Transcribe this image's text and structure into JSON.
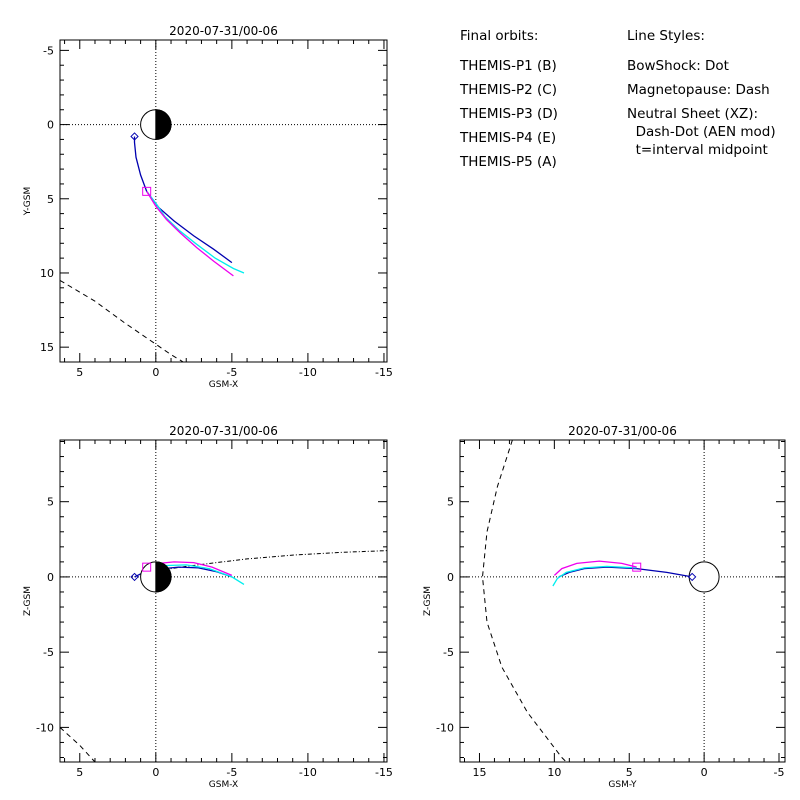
{
  "legend": {
    "orbits_heading": "Final orbits:",
    "probes": [
      {
        "label": "THEMIS-P1 (B)",
        "color": "#ff0000"
      },
      {
        "label": "THEMIS-P2 (C)",
        "color": "#00dd00"
      },
      {
        "label": "THEMIS-P3 (D)",
        "color": "#00eeee"
      },
      {
        "label": "THEMIS-P4 (E)",
        "color": "#0000b0"
      },
      {
        "label": "THEMIS-P5 (A)",
        "color": "#ee00ee"
      }
    ],
    "styles_heading": "Line Styles:",
    "styles": [
      "BowShock: Dot",
      "Magnetopause: Dash",
      "Neutral Sheet (XZ):",
      "  Dash-Dot (AEN mod)",
      "  t=interval midpoint"
    ]
  },
  "chart_data": [
    {
      "id": "xy",
      "type": "line",
      "title": "2020-07-31/00-06",
      "xlabel": "GSM-X",
      "ylabel": "Y-GSM",
      "xlim": [
        6.3,
        -15.2
      ],
      "ylim": [
        16.0,
        -5.7
      ],
      "xticks": [
        5,
        0,
        -5,
        -10,
        -15
      ],
      "yticks": [
        -5,
        0,
        5,
        10,
        15
      ],
      "grid": false,
      "earth": true,
      "series": [
        {
          "probe": "P4",
          "color": "#0000b0",
          "points": [
            [
              1.4,
              0.8
            ],
            [
              1.4,
              1.2
            ],
            [
              1.3,
              2.2
            ],
            [
              1.0,
              3.4
            ],
            [
              0.6,
              4.5
            ],
            [
              -0.2,
              5.6
            ],
            [
              -1.2,
              6.5
            ],
            [
              -2.5,
              7.5
            ],
            [
              -3.8,
              8.4
            ],
            [
              -5.0,
              9.3
            ]
          ]
        },
        {
          "probe": "P3",
          "color": "#00eeee",
          "points": [
            [
              0.6,
              4.5
            ],
            [
              0.0,
              5.3
            ],
            [
              -0.6,
              6.2
            ],
            [
              -1.5,
              7.1
            ],
            [
              -2.6,
              8.0
            ],
            [
              -3.9,
              9.0
            ],
            [
              -5.1,
              9.7
            ],
            [
              -5.8,
              10.0
            ]
          ]
        },
        {
          "probe": "P5",
          "color": "#ee00ee",
          "points": [
            [
              0.6,
              4.5
            ],
            [
              0.0,
              5.5
            ],
            [
              -0.7,
              6.4
            ],
            [
              -1.6,
              7.3
            ],
            [
              -2.7,
              8.3
            ],
            [
              -3.8,
              9.2
            ],
            [
              -5.1,
              10.2
            ]
          ]
        }
      ],
      "markers": [
        {
          "shape": "diamond",
          "color": "#0000b0",
          "at": [
            1.4,
            0.8
          ]
        },
        {
          "shape": "square",
          "color": "#ee00ee",
          "at": [
            0.6,
            4.5
          ]
        }
      ],
      "magnetopause": [
        [
          6.3,
          10.5
        ],
        [
          4.0,
          11.9
        ],
        [
          2.0,
          13.4
        ],
        [
          0.0,
          14.8
        ],
        [
          -1.0,
          15.5
        ],
        [
          -1.8,
          16.0
        ]
      ]
    },
    {
      "id": "xz",
      "type": "line",
      "title": "2020-07-31/00-06",
      "xlabel": "GSM-X",
      "ylabel": "Z-GSM",
      "xlim": [
        6.3,
        -15.2
      ],
      "ylim": [
        -12.3,
        9.1
      ],
      "xticks": [
        5,
        0,
        -5,
        -10,
        -15
      ],
      "yticks": [
        -10,
        -5,
        0,
        5
      ],
      "grid": false,
      "earth": true,
      "series": [
        {
          "probe": "P4",
          "color": "#0000b0",
          "points": [
            [
              1.4,
              0.0
            ],
            [
              0.8,
              0.3
            ],
            [
              -0.5,
              0.55
            ],
            [
              -1.5,
              0.65
            ],
            [
              -2.8,
              0.6
            ],
            [
              -4.0,
              0.35
            ],
            [
              -5.0,
              0.0
            ]
          ]
        },
        {
          "probe": "P3",
          "color": "#00eeee",
          "points": [
            [
              0.8,
              0.5
            ],
            [
              -0.5,
              0.75
            ],
            [
              -2.0,
              0.8
            ],
            [
              -3.5,
              0.55
            ],
            [
              -5.0,
              0.0
            ],
            [
              -5.8,
              -0.5
            ]
          ]
        },
        {
          "probe": "P5",
          "color": "#ee00ee",
          "points": [
            [
              0.6,
              0.65
            ],
            [
              -0.2,
              0.9
            ],
            [
              -1.2,
              1.0
            ],
            [
              -2.5,
              0.95
            ],
            [
              -3.7,
              0.65
            ],
            [
              -5.0,
              0.1
            ]
          ]
        }
      ],
      "markers": [
        {
          "shape": "diamond",
          "color": "#0000b0",
          "at": [
            1.4,
            0.0
          ]
        },
        {
          "shape": "square",
          "color": "#ee00ee",
          "at": [
            0.6,
            0.65
          ]
        }
      ],
      "magnetopause": [
        [
          6.3,
          -10.0
        ],
        [
          5.0,
          -11.2
        ],
        [
          4.0,
          -12.3
        ]
      ],
      "neutral_sheet": [
        [
          0.0,
          0.4
        ],
        [
          -2.0,
          0.7
        ],
        [
          -4.0,
          0.95
        ],
        [
          -6.0,
          1.2
        ],
        [
          -9.0,
          1.45
        ],
        [
          -12.0,
          1.62
        ],
        [
          -15.2,
          1.75
        ]
      ]
    },
    {
      "id": "yz",
      "type": "line",
      "title": "2020-07-31/00-06",
      "xlabel": "GSM-Y",
      "ylabel": "Z-GSM",
      "xlim": [
        16.3,
        -5.4
      ],
      "ylim": [
        -12.3,
        9.1
      ],
      "xticks": [
        15,
        10,
        5,
        0,
        -5
      ],
      "yticks": [
        -10,
        -5,
        0,
        5
      ],
      "grid": false,
      "earth": true,
      "series": [
        {
          "probe": "P4",
          "color": "#0000b0",
          "points": [
            [
              0.8,
              0.0
            ],
            [
              2.5,
              0.3
            ],
            [
              4.5,
              0.55
            ],
            [
              6.5,
              0.65
            ],
            [
              8.0,
              0.55
            ],
            [
              9.0,
              0.3
            ],
            [
              9.7,
              0.0
            ]
          ]
        },
        {
          "probe": "P3",
          "color": "#00eeee",
          "points": [
            [
              4.5,
              0.6
            ],
            [
              6.5,
              0.7
            ],
            [
              8.0,
              0.6
            ],
            [
              9.2,
              0.3
            ],
            [
              9.8,
              -0.1
            ],
            [
              10.1,
              -0.6
            ]
          ]
        },
        {
          "probe": "P5",
          "color": "#ee00ee",
          "points": [
            [
              4.5,
              0.65
            ],
            [
              5.5,
              0.9
            ],
            [
              7.0,
              1.05
            ],
            [
              8.5,
              0.9
            ],
            [
              9.5,
              0.55
            ],
            [
              10.0,
              0.1
            ]
          ]
        }
      ],
      "markers": [
        {
          "shape": "diamond",
          "color": "#0000b0",
          "at": [
            0.8,
            0.0
          ]
        },
        {
          "shape": "square",
          "color": "#ee00ee",
          "at": [
            4.5,
            0.65
          ]
        }
      ],
      "magnetopause": [
        [
          12.8,
          9.1
        ],
        [
          13.8,
          6.0
        ],
        [
          14.5,
          3.0
        ],
        [
          14.8,
          0.0
        ],
        [
          14.5,
          -3.0
        ],
        [
          13.5,
          -6.0
        ],
        [
          11.8,
          -9.0
        ],
        [
          9.5,
          -12.0
        ],
        [
          9.2,
          -12.3
        ]
      ]
    }
  ]
}
